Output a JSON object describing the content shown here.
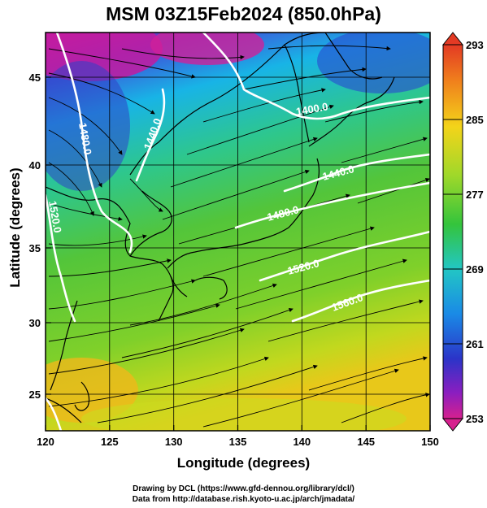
{
  "title": "MSM 03Z15Feb2024 (850.0hPa)",
  "xlabel": "Longitude (degrees)",
  "ylabel": "Latitude  (degrees)",
  "credit_line1": "Drawing by DCL (https://www.gfd-dennou.org/library/dcl/)",
  "credit_line2": "Data from http://database.rish.kyoto-u.ac.jp/arch/jmadata/",
  "x_ticks": [
    "120",
    "125",
    "130",
    "135",
    "140",
    "145",
    "150"
  ],
  "y_ticks": [
    "25",
    "30",
    "35",
    "40",
    "45"
  ],
  "colorbar_ticks": [
    "293",
    "285",
    "277",
    "269",
    "261",
    "253"
  ],
  "contour_labels": [
    "1480.0",
    "1440.0",
    "1520.0",
    "1400.0",
    "1440.0",
    "1480.0",
    "1520.0",
    "1560.0"
  ],
  "colors": {
    "background": "#ffffff",
    "contour": "#ffffff",
    "coast": "#000000"
  }
}
